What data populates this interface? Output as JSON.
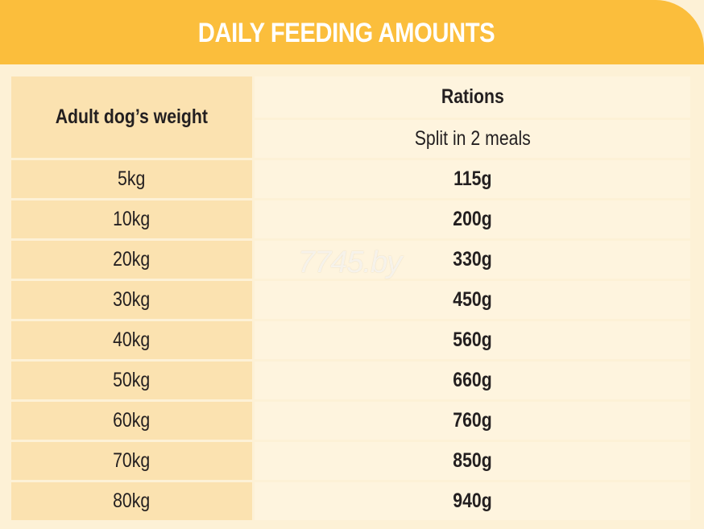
{
  "header": {
    "title": "DAILY FEEDING AMOUNTS"
  },
  "table": {
    "header": {
      "weight": "Adult dog’s weight",
      "rations": "Rations",
      "subheader": "Split in 2 meals"
    },
    "rows": [
      [
        "5kg",
        "115g"
      ],
      [
        "10kg",
        "200g"
      ],
      [
        "20kg",
        "330g"
      ],
      [
        "30kg",
        "450g"
      ],
      [
        "40kg",
        "560g"
      ],
      [
        "50kg",
        "660g"
      ],
      [
        "60kg",
        "760g"
      ],
      [
        "70kg",
        "850g"
      ],
      [
        "80kg",
        "940g"
      ]
    ]
  },
  "watermark": "7745.by"
}
